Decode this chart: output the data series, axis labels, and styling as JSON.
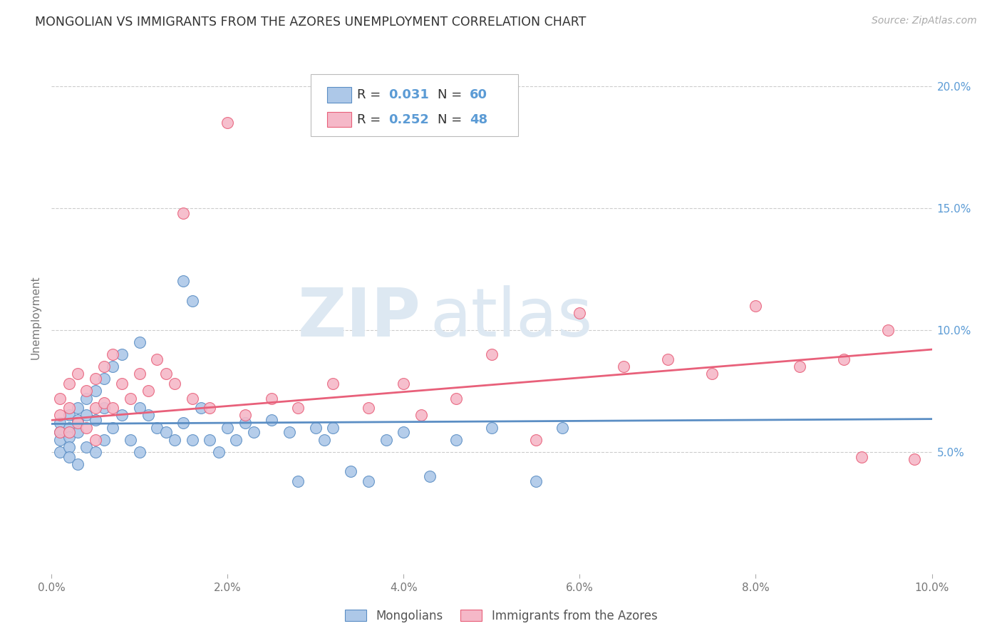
{
  "title": "MONGOLIAN VS IMMIGRANTS FROM THE AZORES UNEMPLOYMENT CORRELATION CHART",
  "source": "Source: ZipAtlas.com",
  "ylabel": "Unemployment",
  "xlim": [
    0.0,
    0.1
  ],
  "ylim": [
    0.0,
    0.21
  ],
  "xtick_labels": [
    "0.0%",
    "2.0%",
    "4.0%",
    "6.0%",
    "8.0%",
    "10.0%"
  ],
  "xtick_vals": [
    0.0,
    0.02,
    0.04,
    0.06,
    0.08,
    0.1
  ],
  "ytick_labels": [
    "5.0%",
    "10.0%",
    "15.0%",
    "20.0%"
  ],
  "ytick_vals": [
    0.05,
    0.1,
    0.15,
    0.2
  ],
  "legend_entries": [
    "Mongolians",
    "Immigrants from the Azores"
  ],
  "blue_R": "0.031",
  "blue_N": "60",
  "pink_R": "0.252",
  "pink_N": "48",
  "blue_color": "#adc8e8",
  "pink_color": "#f5b8c8",
  "blue_line_color": "#5b8ec4",
  "pink_line_color": "#e8607a",
  "watermark_zip": "ZIP",
  "watermark_atlas": "atlas",
  "blue_scatter_x": [
    0.001,
    0.001,
    0.001,
    0.001,
    0.002,
    0.002,
    0.002,
    0.002,
    0.002,
    0.003,
    0.003,
    0.003,
    0.003,
    0.004,
    0.004,
    0.004,
    0.005,
    0.005,
    0.005,
    0.006,
    0.006,
    0.006,
    0.007,
    0.007,
    0.008,
    0.008,
    0.009,
    0.01,
    0.01,
    0.01,
    0.011,
    0.012,
    0.013,
    0.014,
    0.015,
    0.015,
    0.016,
    0.016,
    0.017,
    0.018,
    0.019,
    0.02,
    0.021,
    0.022,
    0.023,
    0.025,
    0.027,
    0.028,
    0.03,
    0.031,
    0.032,
    0.034,
    0.036,
    0.038,
    0.04,
    0.043,
    0.046,
    0.05,
    0.055,
    0.058
  ],
  "blue_scatter_y": [
    0.062,
    0.058,
    0.055,
    0.05,
    0.065,
    0.06,
    0.056,
    0.052,
    0.048,
    0.068,
    0.063,
    0.058,
    0.045,
    0.072,
    0.065,
    0.052,
    0.075,
    0.063,
    0.05,
    0.08,
    0.068,
    0.055,
    0.085,
    0.06,
    0.09,
    0.065,
    0.055,
    0.095,
    0.068,
    0.05,
    0.065,
    0.06,
    0.058,
    0.055,
    0.12,
    0.062,
    0.112,
    0.055,
    0.068,
    0.055,
    0.05,
    0.06,
    0.055,
    0.062,
    0.058,
    0.063,
    0.058,
    0.038,
    0.06,
    0.055,
    0.06,
    0.042,
    0.038,
    0.055,
    0.058,
    0.04,
    0.055,
    0.06,
    0.038,
    0.06
  ],
  "pink_scatter_x": [
    0.001,
    0.001,
    0.001,
    0.002,
    0.002,
    0.002,
    0.003,
    0.003,
    0.004,
    0.004,
    0.005,
    0.005,
    0.005,
    0.006,
    0.006,
    0.007,
    0.007,
    0.008,
    0.009,
    0.01,
    0.011,
    0.012,
    0.013,
    0.014,
    0.015,
    0.016,
    0.018,
    0.02,
    0.022,
    0.025,
    0.028,
    0.032,
    0.036,
    0.04,
    0.042,
    0.046,
    0.05,
    0.055,
    0.06,
    0.065,
    0.07,
    0.075,
    0.08,
    0.085,
    0.09,
    0.092,
    0.095,
    0.098
  ],
  "pink_scatter_y": [
    0.072,
    0.065,
    0.058,
    0.078,
    0.068,
    0.058,
    0.082,
    0.062,
    0.075,
    0.06,
    0.08,
    0.068,
    0.055,
    0.085,
    0.07,
    0.09,
    0.068,
    0.078,
    0.072,
    0.082,
    0.075,
    0.088,
    0.082,
    0.078,
    0.148,
    0.072,
    0.068,
    0.185,
    0.065,
    0.072,
    0.068,
    0.078,
    0.068,
    0.078,
    0.065,
    0.072,
    0.09,
    0.055,
    0.107,
    0.085,
    0.088,
    0.082,
    0.11,
    0.085,
    0.088,
    0.048,
    0.1,
    0.047
  ]
}
